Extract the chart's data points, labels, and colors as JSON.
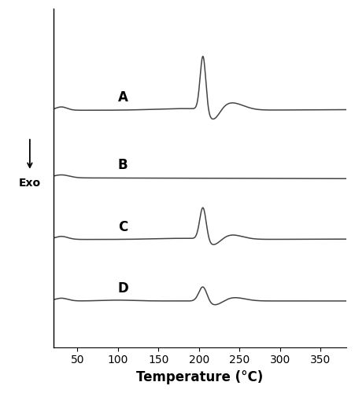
{
  "x_min": 20,
  "x_max": 382,
  "x_ticks": [
    50,
    100,
    150,
    200,
    250,
    300,
    350
  ],
  "xlabel": "Temperature (°C)",
  "xlabel_fontsize": 12,
  "tick_fontsize": 10,
  "line_color": "#444444",
  "line_width": 1.1,
  "label_fontsize": 12,
  "labels": [
    "A",
    "B",
    "C",
    "D"
  ],
  "figsize": [
    4.51,
    5.0
  ],
  "dpi": 100,
  "curve_offsets": [
    0.72,
    0.5,
    0.3,
    0.1
  ],
  "curve_scales": [
    0.18,
    0.18,
    0.18,
    0.18
  ],
  "ylim": [
    -0.05,
    1.05
  ]
}
